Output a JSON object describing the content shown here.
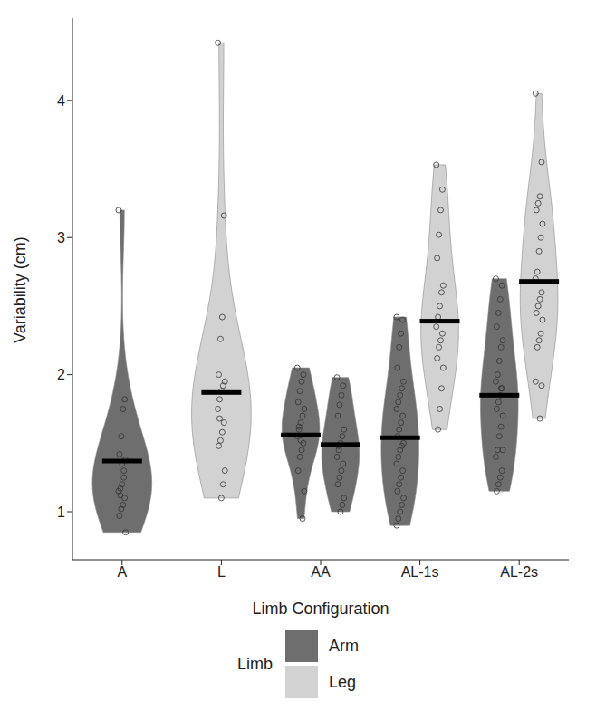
{
  "chart_data": {
    "type": "violin",
    "y_label": "Variability (cm)",
    "x_label": "Limb Configuration",
    "categories": [
      "A",
      "L",
      "AA",
      "AL-1s",
      "AL-2s"
    ],
    "ylim": [
      0.65,
      4.6
    ],
    "yticks": [
      1,
      2,
      3,
      4
    ],
    "grid": false,
    "legend": "bottom",
    "legend_title": "Limb",
    "series": [
      {
        "name": "Arm",
        "color": "#6e6e6e",
        "groups": [
          {
            "category": "A",
            "values": [
              3.2,
              1.82,
              1.75,
              1.55,
              1.42,
              1.38,
              1.3,
              1.2,
              1.17,
              1.15,
              1.1,
              1.05,
              1.02,
              0.97,
              0.85,
              1.25,
              1.35,
              1.12
            ],
            "mean": 1.37
          },
          {
            "category": "AA",
            "values": [
              2.05,
              2.0,
              1.95,
              1.88,
              1.8,
              1.75,
              1.7,
              1.65,
              1.6,
              1.55,
              1.5,
              1.45,
              1.4,
              1.3,
              1.15,
              0.95,
              1.52,
              1.62
            ],
            "mean": 1.56
          },
          {
            "category": "AA",
            "values": [
              1.98,
              1.92,
              1.85,
              1.78,
              1.7,
              1.6,
              1.55,
              1.5,
              1.45,
              1.4,
              1.35,
              1.3,
              1.25,
              1.2,
              1.1,
              1.05,
              1.0,
              1.48
            ],
            "mean": 1.49
          },
          {
            "category": "AL-1s",
            "values": [
              2.42,
              2.4,
              2.3,
              2.2,
              2.05,
              1.95,
              1.9,
              1.85,
              1.8,
              1.75,
              1.7,
              1.65,
              1.6,
              1.55,
              1.5,
              1.48,
              1.45,
              1.4,
              1.35,
              1.3,
              1.25,
              1.2,
              1.15,
              1.1,
              1.05,
              1.0,
              0.95,
              0.9
            ],
            "mean": 1.54
          },
          {
            "category": "AL-2s",
            "values": [
              2.7,
              2.65,
              2.55,
              2.45,
              2.35,
              2.25,
              2.2,
              2.1,
              2.0,
              1.95,
              1.9,
              1.85,
              1.8,
              1.75,
              1.7,
              1.62,
              1.55,
              1.45,
              1.4,
              1.3,
              1.25,
              1.2,
              1.15,
              1.45,
              1.9
            ],
            "mean": 1.85
          }
        ]
      },
      {
        "name": "Leg",
        "color": "#d2d2d2",
        "groups": [
          {
            "category": "L",
            "values": [
              4.42,
              3.16,
              2.42,
              2.26,
              2.0,
              1.95,
              1.92,
              1.88,
              1.82,
              1.75,
              1.65,
              1.58,
              1.52,
              1.48,
              1.3,
              1.2,
              1.1,
              1.68
            ],
            "mean": 1.87
          },
          {
            "category": "AL-1s",
            "values": [
              3.53,
              3.35,
              3.2,
              3.02,
              2.85,
              2.65,
              2.6,
              2.5,
              2.42,
              2.35,
              2.3,
              2.25,
              2.2,
              2.12,
              2.05,
              1.9,
              1.75,
              1.6
            ],
            "mean": 2.39
          },
          {
            "category": "AL-2s",
            "values": [
              4.05,
              3.55,
              3.3,
              3.25,
              3.2,
              3.1,
              3.0,
              2.9,
              2.75,
              2.7,
              2.6,
              2.55,
              2.5,
              2.45,
              2.4,
              2.3,
              2.25,
              2.2,
              1.95,
              1.92,
              1.68
            ],
            "mean": 2.68
          }
        ]
      }
    ]
  }
}
